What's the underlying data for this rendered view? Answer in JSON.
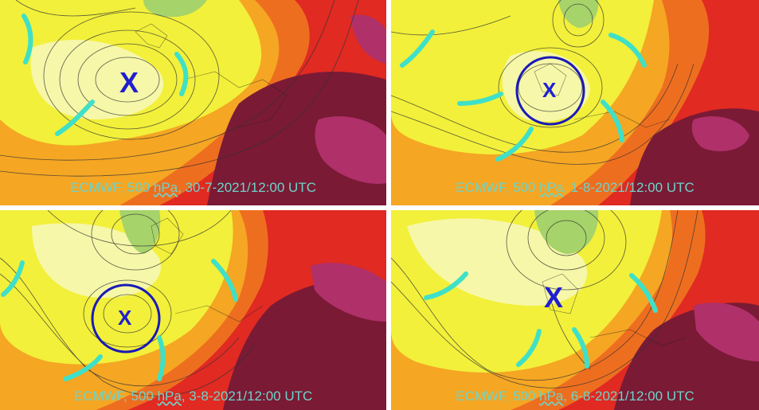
{
  "colors": {
    "yellow": "#f2f03a",
    "pale_yellow": "#f6f7a8",
    "green": "#a6d36a",
    "orange": "#f5a623",
    "dark_orange": "#ee6e1f",
    "red": "#e02a22",
    "maroon": "#7a1a35",
    "magenta": "#b0306a",
    "contour": "#333333",
    "trough_line": "#3fe0c8",
    "circle": "#1a1ab8",
    "x_mark": "#1f1fd0",
    "caption": "#6fd3c8"
  },
  "panels": [
    {
      "caption_prefix": "ECMWF, 500 ",
      "caption_unit": "hPa",
      "caption_suffix": ", 30-7-2021/12:00 UTC",
      "marker": "X",
      "circled": false
    },
    {
      "caption_prefix": "ECMWF, 500 ",
      "caption_unit": "hPa",
      "caption_suffix": ", 1-8-2021/12:00 UTC",
      "marker": "X",
      "circled": true
    },
    {
      "caption_prefix": "ECMWF, 500 ",
      "caption_unit": "hPa",
      "caption_suffix": ", 3-8-2021/12:00 UTC",
      "marker": "X",
      "circled": true
    },
    {
      "caption_prefix": "ECMWF, 500 ",
      "caption_unit": "hPa",
      "caption_suffix": ", 6-8-2021/12:00 UTC",
      "marker": "X",
      "circled": false
    }
  ]
}
